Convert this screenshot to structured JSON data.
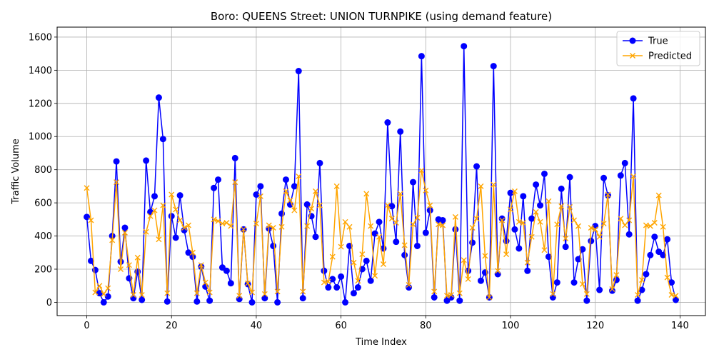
{
  "chart_data": {
    "type": "line",
    "title": "Boro: QUEENS Street: UNION TURNPIKE (using demand feature)",
    "xlabel": "Time Index",
    "ylabel": "Traffic Volume",
    "xlim": [
      -7,
      146
    ],
    "ylim": [
      -80,
      1660
    ],
    "xticks": [
      0,
      20,
      40,
      60,
      80,
      100,
      120,
      140
    ],
    "yticks": [
      0,
      200,
      400,
      600,
      800,
      1000,
      1200,
      1400,
      1600
    ],
    "grid": true,
    "legend_position": "top-right",
    "series": [
      {
        "name": "True",
        "color": "#0000ff",
        "marker": "circle",
        "values": [
          515,
          250,
          195,
          55,
          0,
          35,
          400,
          850,
          245,
          450,
          145,
          25,
          185,
          15,
          855,
          545,
          640,
          1235,
          985,
          5,
          520,
          390,
          645,
          435,
          300,
          275,
          5,
          215,
          95,
          10,
          690,
          740,
          210,
          190,
          115,
          870,
          20,
          440,
          110,
          0,
          650,
          700,
          25,
          445,
          340,
          0,
          535,
          740,
          590,
          700,
          1395,
          25,
          590,
          520,
          395,
          840,
          190,
          90,
          140,
          90,
          155,
          0,
          340,
          55,
          90,
          200,
          250,
          130,
          415,
          485,
          325,
          1085,
          580,
          365,
          1030,
          285,
          90,
          725,
          340,
          1485,
          420,
          555,
          30,
          500,
          495,
          10,
          30,
          440,
          10,
          1545,
          190,
          360,
          820,
          130,
          180,
          30,
          1425,
          170,
          505,
          370,
          660,
          440,
          325,
          640,
          190,
          505,
          710,
          585,
          775,
          275,
          30,
          120,
          685,
          335,
          755,
          120,
          260,
          320,
          10,
          370,
          460,
          75,
          750,
          645,
          70,
          135,
          765,
          840,
          410,
          1230,
          10,
          75,
          170,
          285,
          395,
          305,
          285,
          380,
          120,
          15
        ]
      },
      {
        "name": "Predicted",
        "color": "#ffa500",
        "marker": "x",
        "values": [
          690,
          495,
          60,
          100,
          50,
          85,
          375,
          725,
          200,
          420,
          225,
          45,
          270,
          45,
          425,
          520,
          555,
          380,
          585,
          55,
          650,
          560,
          495,
          450,
          465,
          300,
          55,
          225,
          120,
          60,
          500,
          490,
          475,
          480,
          460,
          725,
          40,
          440,
          115,
          60,
          475,
          640,
          50,
          465,
          450,
          65,
          455,
          670,
          615,
          555,
          760,
          65,
          460,
          565,
          670,
          585,
          120,
          125,
          275,
          700,
          335,
          485,
          455,
          240,
          130,
          290,
          655,
          460,
          160,
          395,
          230,
          585,
          505,
          480,
          655,
          345,
          105,
          470,
          510,
          795,
          675,
          585,
          65,
          470,
          465,
          40,
          45,
          515,
          55,
          255,
          140,
          450,
          505,
          700,
          280,
          30,
          710,
          190,
          495,
          290,
          560,
          670,
          485,
          480,
          240,
          395,
          545,
          485,
          315,
          610,
          50,
          470,
          580,
          385,
          575,
          495,
          460,
          110,
          50,
          450,
          440,
          395,
          475,
          650,
          80,
          165,
          505,
          465,
          495,
          760,
          45,
          135,
          465,
          460,
          480,
          645,
          455,
          150,
          45,
          40
        ]
      }
    ]
  }
}
